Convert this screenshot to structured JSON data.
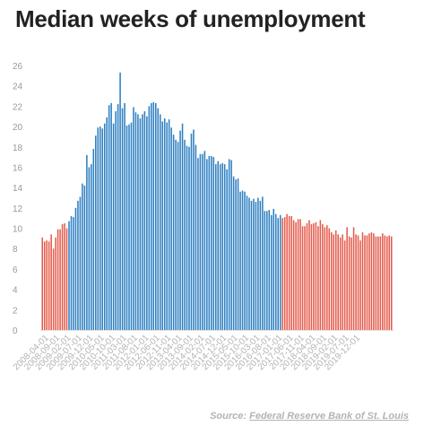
{
  "chart_data": {
    "type": "bar",
    "title": "Median weeks of unemployment",
    "xlabel": "",
    "ylabel": "",
    "ylim": [
      0,
      26
    ],
    "yticks": [
      "0",
      "2",
      "4",
      "6",
      "8",
      "10",
      "12",
      "14",
      "16",
      "18",
      "20",
      "22",
      "24",
      "26"
    ],
    "xticks": [
      "2008-04-01",
      "2008-09-01",
      "2009-02-01",
      "2009-07-01",
      "2009-12-01",
      "2010-05-01",
      "2010-10-01",
      "2011-03-01",
      "2011-08-01",
      "2012-01-01",
      "2012-06-01",
      "2012-11-01",
      "2013-04-01",
      "2013-09-01",
      "2014-02-01",
      "2014-07-01",
      "2014-12-01",
      "2015-05-01",
      "2015-10-01",
      "2016-03-01",
      "2016-08-01",
      "2017-01-01",
      "2017-06-01",
      "2017-11-01",
      "2018-04-01",
      "2018-09-01",
      "2019-02-01",
      "2019-07-01",
      "2019-12-01"
    ],
    "first_period": "2008-01-01",
    "last_period": "2019-12-01",
    "frequency": "monthly",
    "grid": false,
    "colors": {
      "recession_period": "#e45b4c",
      "recovery_period": "#2d7fc1"
    },
    "highlight": {
      "start": "2009-01-01",
      "end": "2016-12-01"
    },
    "values": [
      9.1,
      8.7,
      8.8,
      8.7,
      9.4,
      8.0,
      9.1,
      9.9,
      9.9,
      10.4,
      10.5,
      10.0,
      10.7,
      11.2,
      11.1,
      12.0,
      12.7,
      13.1,
      14.4,
      14.2,
      17.2,
      16.0,
      16.3,
      17.8,
      19.1,
      19.9,
      20.0,
      19.8,
      20.3,
      20.9,
      22.1,
      22.3,
      20.3,
      21.5,
      22.2,
      25.3,
      21.8,
      22.3,
      20.1,
      20.2,
      20.4,
      21.9,
      21.4,
      21.2,
      20.8,
      21.2,
      21.5,
      21.0,
      22.0,
      22.3,
      22.4,
      22.3,
      21.8,
      21.2,
      20.5,
      20.8,
      20.4,
      20.7,
      19.9,
      19.2,
      18.7,
      18.5,
      19.6,
      20.3,
      18.7,
      18.1,
      18.0,
      19.3,
      19.7,
      18.2,
      16.9,
      17.3,
      17.3,
      17.6,
      16.8,
      17.1,
      17.1,
      17.0,
      16.3,
      16.6,
      16.3,
      16.4,
      16.3,
      15.8,
      16.8,
      16.7,
      15.1,
      14.8,
      14.9,
      13.6,
      13.7,
      13.6,
      13.2,
      13.0,
      12.7,
      12.9,
      12.6,
      13.0,
      12.7,
      13.1,
      11.7,
      11.7,
      11.8,
      11.3,
      11.9,
      11.4,
      11.0,
      11.3,
      11.0,
      11.1,
      11.4,
      11.2,
      11.2,
      10.8,
      10.6,
      10.9,
      10.9,
      10.2,
      10.2,
      10.5,
      10.8,
      10.4,
      10.5,
      10.6,
      10.2,
      10.8,
      10.4,
      10.1,
      10.3,
      10.0,
      9.6,
      9.4,
      9.8,
      9.4,
      9.1,
      9.4,
      8.8,
      10.1,
      9.2,
      9.1,
      10.1,
      9.4,
      9.3,
      8.8,
      9.6,
      9.3,
      9.3,
      9.5,
      9.6,
      9.5,
      9.2,
      9.2,
      9.2,
      9.5,
      9.3,
      9.2,
      9.3,
      9.2
    ]
  },
  "source": {
    "label": "Source: ",
    "link_text": "Federal Reserve Bank of St. Louis"
  }
}
